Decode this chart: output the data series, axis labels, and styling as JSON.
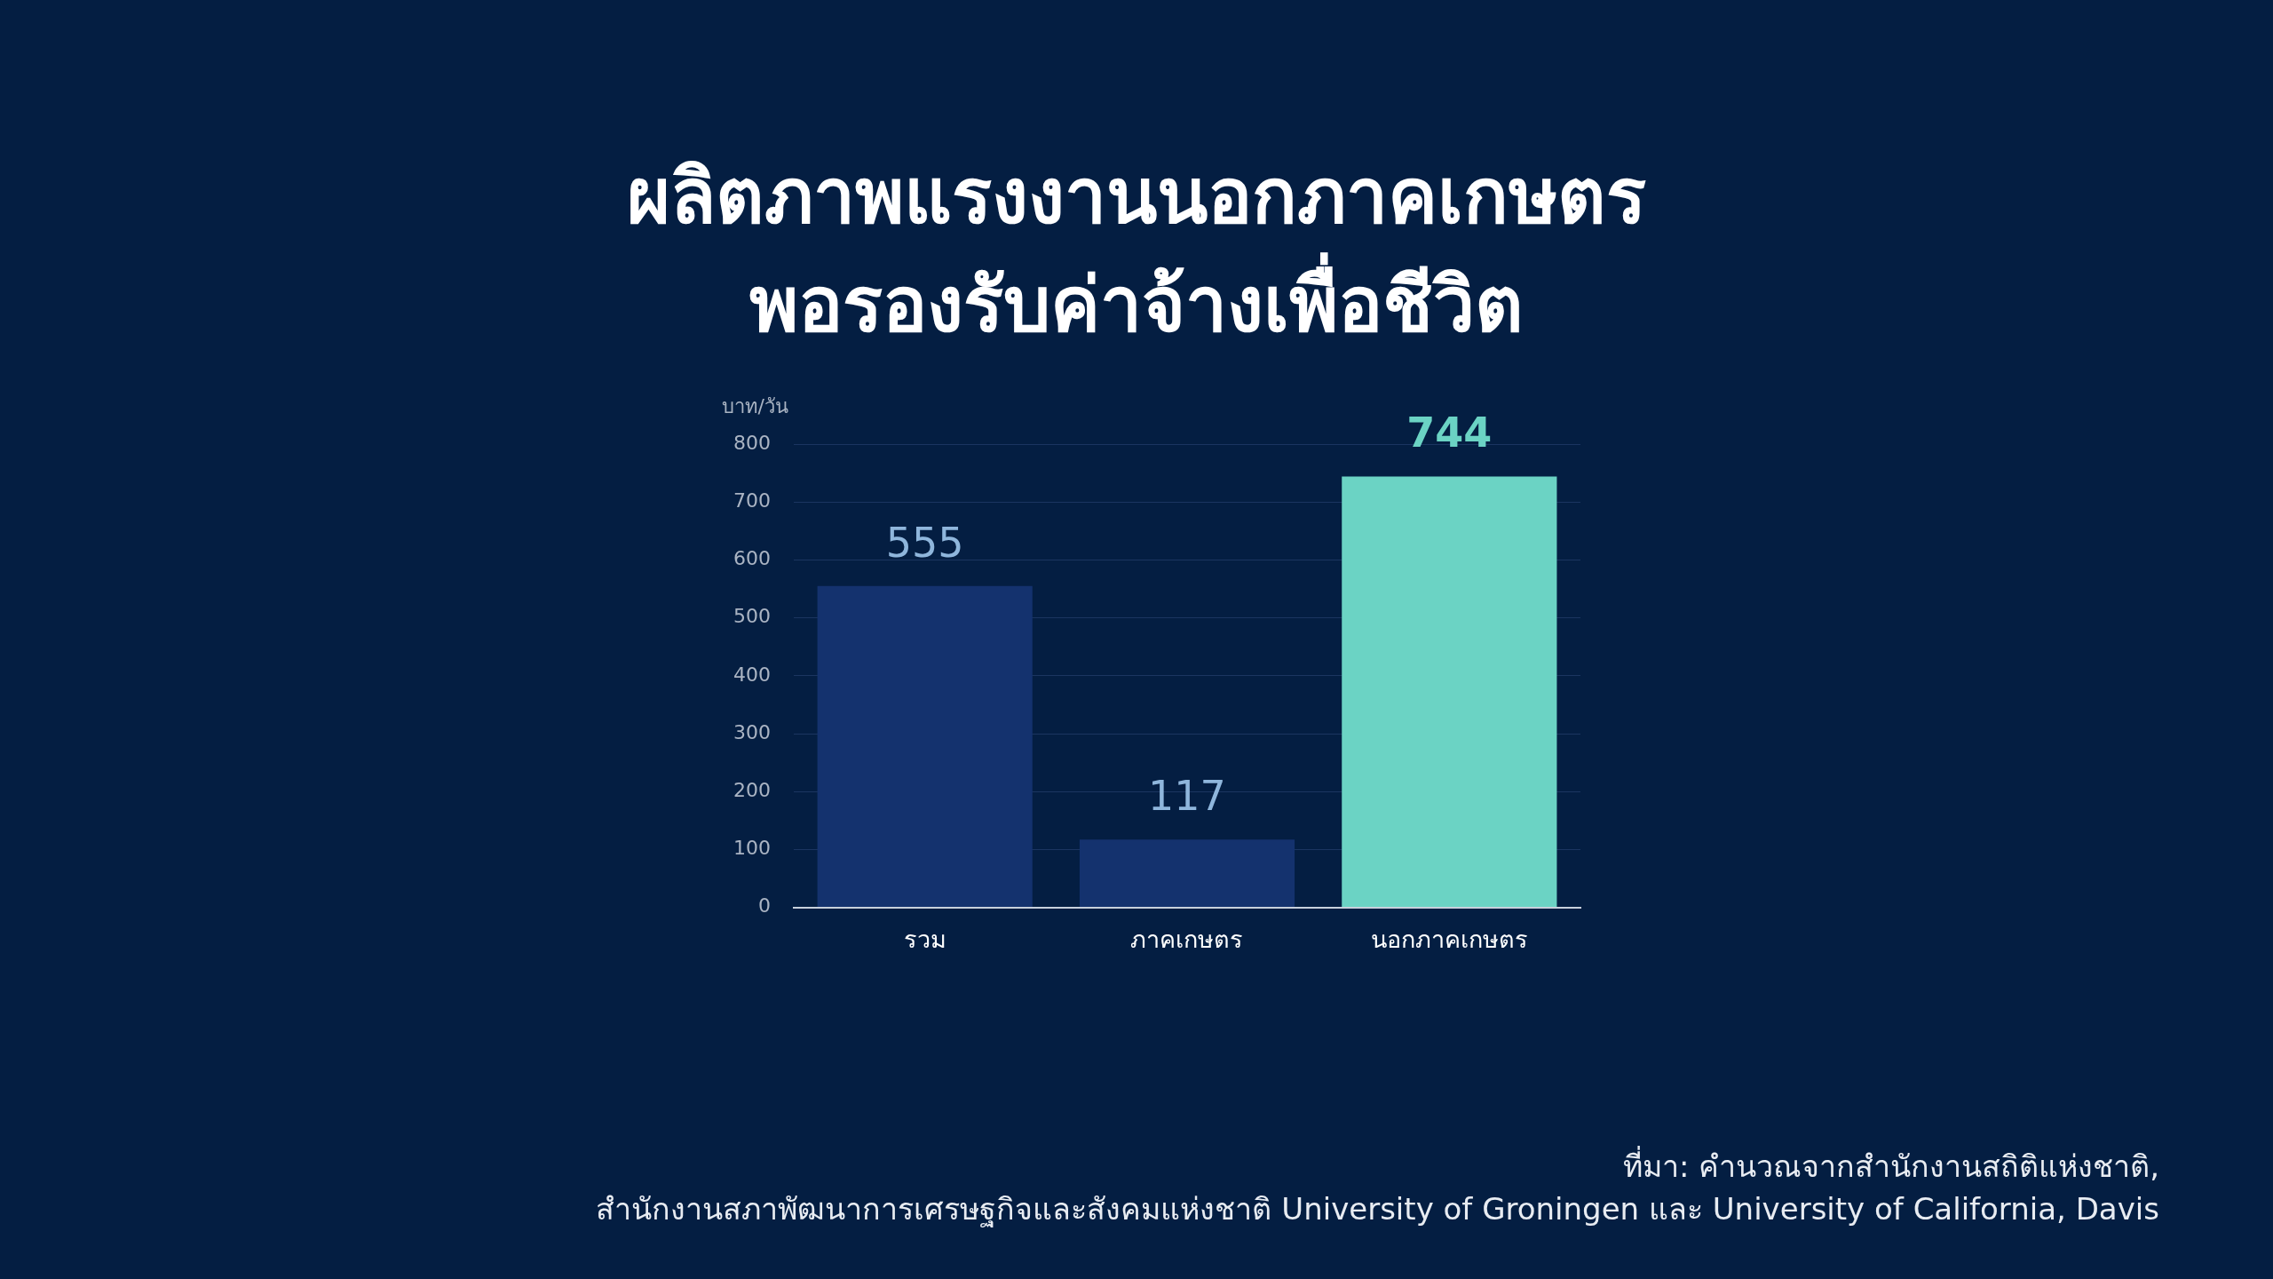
{
  "chart_data": {
    "type": "bar",
    "title": "ผลิตภาพแรงงานนอกภาคเกษตร\nพอรองรับค่าจ้างเพื่อชีวิต",
    "ylabel": "บาท/วัน",
    "categories": [
      "รวม",
      "ภาคเกษตร",
      "นอกภาคเกษตร"
    ],
    "values": [
      555,
      117,
      744
    ],
    "colors": [
      "#14326e",
      "#14326e",
      "#6bd3c4"
    ],
    "ylim": [
      0,
      800
    ],
    "yticks": [
      0,
      100,
      200,
      300,
      400,
      500,
      600,
      700,
      800
    ],
    "grid": "y",
    "data_labels": true,
    "legend": false,
    "annotations": [
      "ที่มา: คำนวณจากสำนักงานสถิติแห่งชาติ,\nสำนักงานสภาพัฒนาการเศรษฐกิจและสังคมแห่งชาติ University of Groningen และ University of California, Davis"
    ]
  }
}
